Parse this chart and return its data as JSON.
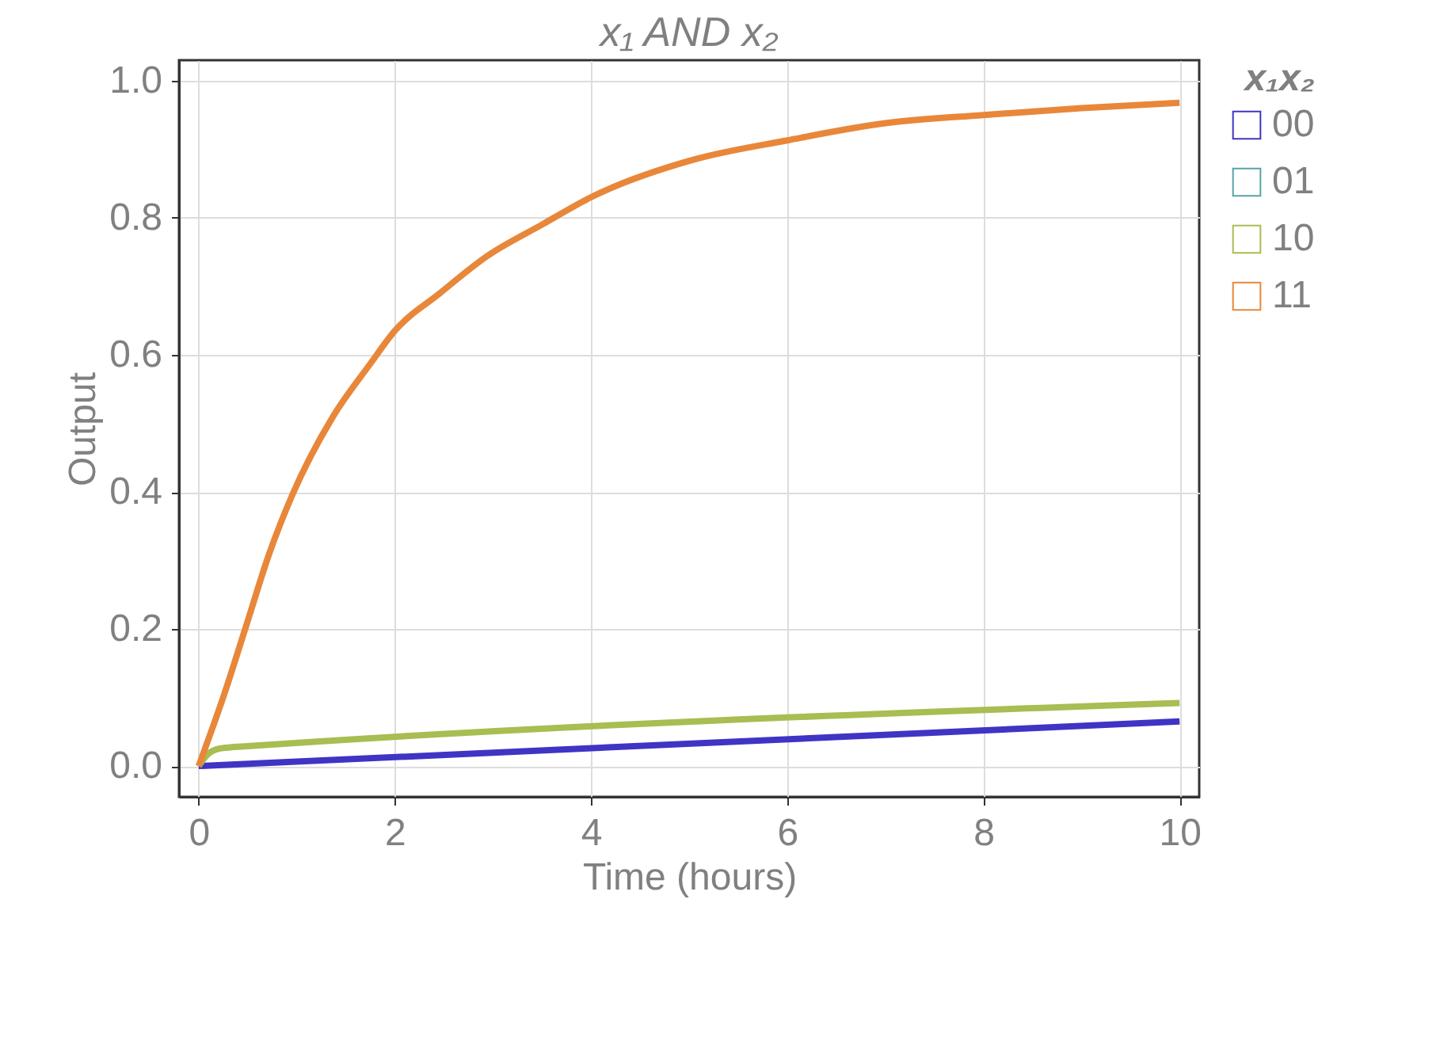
{
  "chart_data": {
    "type": "line",
    "title": "x₁ AND x₂",
    "xlabel": "Time (hours)",
    "ylabel": "Output",
    "legend_title": "x₁x₂",
    "xlim": [
      -0.2,
      10.2
    ],
    "xticks": [
      0,
      2,
      4,
      6,
      8,
      10
    ],
    "ylim": [
      -0.045,
      1.03
    ],
    "yticks": [
      {
        "value": 0,
        "label": "0.0"
      },
      0.2,
      0.4,
      0.6,
      0.8,
      {
        "value": 1,
        "label": "1.0"
      }
    ],
    "grid": true,
    "legend": "right",
    "line_style": "solid",
    "series": [
      {
        "name": "00",
        "color": "#4034c4",
        "x": [
          0,
          10
        ],
        "values": [
          0,
          0.065
        ]
      },
      {
        "name": "01",
        "color": "#58a3a8"
      },
      {
        "name": "10",
        "color": "#a8bd52",
        "x": [
          0,
          0.1,
          0.2,
          0.3,
          0.5,
          10
        ],
        "values": [
          0,
          0.018,
          0.025,
          0.027,
          0.029,
          0.092
        ]
      },
      {
        "name": "11",
        "color": "#e8873a",
        "x": [
          0,
          0.25,
          0.49,
          0.72,
          0.95,
          1.37,
          1.75,
          2,
          2.46,
          2.95,
          3.5,
          4,
          5.05,
          6,
          7,
          8,
          9,
          10
        ],
        "values": [
          0,
          0.1,
          0.207,
          0.31,
          0.394,
          0.51,
          0.587,
          0.635,
          0.69,
          0.745,
          0.79,
          0.83,
          0.885,
          0.913,
          0.938,
          0.95,
          0.96,
          0.968
        ]
      }
    ]
  }
}
